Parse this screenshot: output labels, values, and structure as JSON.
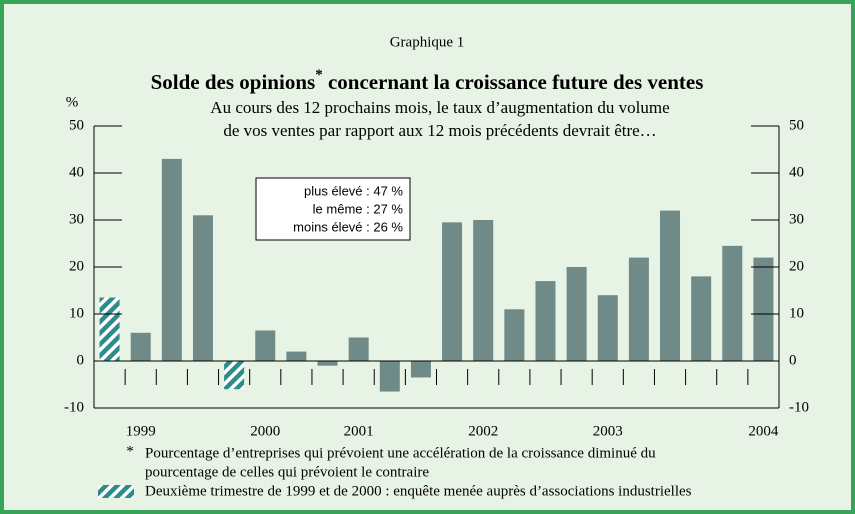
{
  "chart_data": {
    "type": "bar",
    "supertitle": "Graphique 1",
    "title_parts": [
      "Solde des opinions",
      "*",
      " concernant la croissance future des ventes"
    ],
    "subtitle_lines": [
      "Au cours des 12 prochains mois, le taux d’augmentation du volume",
      "de vos ventes par rapport aux 12 mois précédents devrait être…"
    ],
    "y_unit": "%",
    "categories": [
      null,
      "1999",
      null,
      null,
      null,
      "2000",
      null,
      null,
      "2001",
      null,
      null,
      null,
      "2002",
      null,
      null,
      null,
      "2003",
      null,
      null,
      null,
      null,
      "2004"
    ],
    "values": [
      13.5,
      6,
      43,
      31,
      -6,
      6.5,
      2,
      -1,
      5,
      -6.5,
      -3.5,
      29.5,
      30,
      11,
      17,
      20,
      14,
      22,
      32,
      18,
      24.5,
      22
    ],
    "bar_styles": [
      "hatched",
      "solid",
      "solid",
      "solid",
      "hatched",
      "solid",
      "solid",
      "solid",
      "solid",
      "solid",
      "solid",
      "solid",
      "solid",
      "solid",
      "solid",
      "solid",
      "solid",
      "solid",
      "solid",
      "solid",
      "solid",
      "solid"
    ],
    "color": "#6f8a87",
    "hatch_color": "#2e8b8b",
    "ylim": [
      -10,
      50
    ],
    "yticks": [
      -10,
      0,
      10,
      20,
      30,
      40,
      50
    ],
    "info_box": [
      "plus élevé : 47 %",
      "le même : 27 %",
      "moins élevé : 26 %"
    ],
    "footnote_mark": "*",
    "footnote_lines": [
      "Pourcentage d’entreprises qui prévoient une accélération de la croissance diminué du",
      "pourcentage de celles qui prévoient le contraire"
    ],
    "hatch_note": "Deuxième trimestre de 1999 et de 2000 : enquête menée auprès d’associations industrielles"
  }
}
